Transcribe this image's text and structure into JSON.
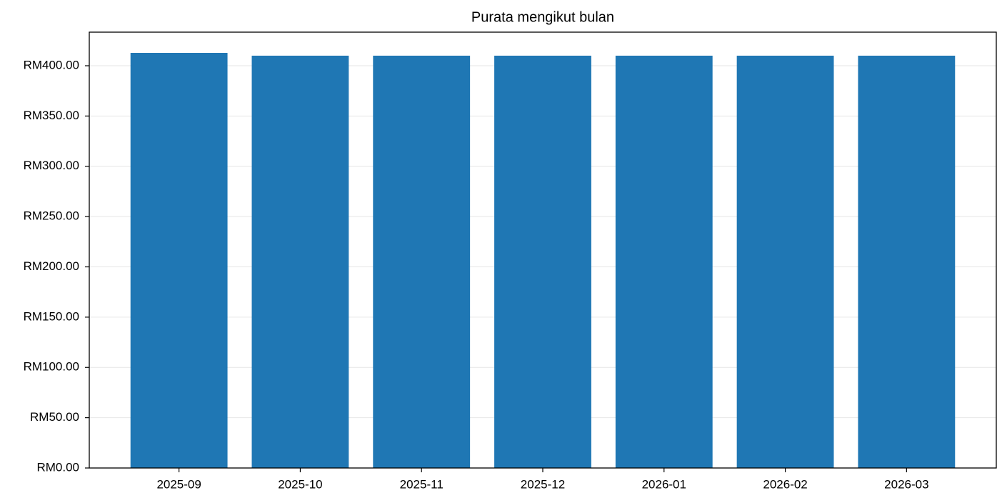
{
  "chart_data": {
    "type": "bar",
    "title": "Purata mengikut bulan",
    "categories": [
      "2025-09",
      "2025-10",
      "2025-11",
      "2025-12",
      "2026-01",
      "2026-02",
      "2026-03"
    ],
    "values": [
      412.8,
      410,
      410,
      410,
      410,
      410,
      410
    ],
    "color": "#1f77b4",
    "ylim": [
      0,
      433.4
    ],
    "yticks": [
      {
        "value": 0,
        "label": "RM0.00"
      },
      {
        "value": 50,
        "label": "RM50.00"
      },
      {
        "value": 100,
        "label": "RM100.00"
      },
      {
        "value": 150,
        "label": "RM150.00"
      },
      {
        "value": 200,
        "label": "RM200.00"
      },
      {
        "value": 250,
        "label": "RM250.00"
      },
      {
        "value": 300,
        "label": "RM300.00"
      },
      {
        "value": 350,
        "label": "RM350.00"
      },
      {
        "value": 400,
        "label": "RM400.00"
      }
    ],
    "grid": true
  }
}
